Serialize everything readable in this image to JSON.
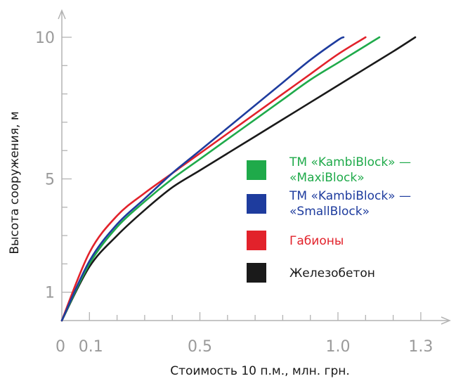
{
  "chart_data": {
    "type": "line",
    "xlabel": "Стоимость 10 п.м., млн. грн.",
    "ylabel": "Высота сооружения, м",
    "xlim": [
      0,
      1.35
    ],
    "ylim": [
      0,
      10.5
    ],
    "x_ticks": [
      0,
      0.1,
      0.5,
      1.0,
      1.3
    ],
    "x_tick_labels": [
      "0",
      "0.1",
      "0.5",
      "1.0",
      "1.3"
    ],
    "y_ticks": [
      1,
      5,
      10
    ],
    "y_tick_labels": [
      "1",
      "5",
      "10"
    ],
    "grid": false,
    "legend_position": "right",
    "series": [
      {
        "name": "ТМ «KambiBlock» — «MaxiBlock»",
        "color": "#1faa4a",
        "x": [
          0,
          0.1,
          0.2,
          0.3,
          0.4,
          0.5,
          0.6,
          0.7,
          0.8,
          0.9,
          1.0,
          1.1,
          1.15
        ],
        "y": [
          0,
          2.0,
          3.3,
          4.2,
          5.0,
          5.7,
          6.4,
          7.1,
          7.8,
          8.5,
          9.1,
          9.7,
          10.0
        ]
      },
      {
        "name": "ТМ «KambiBlock» — «SmallBlock»",
        "color": "#1e3c9e",
        "x": [
          0,
          0.1,
          0.2,
          0.3,
          0.4,
          0.5,
          0.6,
          0.7,
          0.8,
          0.9,
          1.0,
          1.02
        ],
        "y": [
          0,
          2.1,
          3.4,
          4.3,
          5.2,
          6.0,
          6.8,
          7.6,
          8.4,
          9.2,
          9.9,
          10.0
        ]
      },
      {
        "name": "Габионы",
        "color": "#e2222b",
        "x": [
          0,
          0.1,
          0.2,
          0.3,
          0.4,
          0.5,
          0.6,
          0.7,
          0.8,
          0.9,
          1.0,
          1.1
        ],
        "y": [
          0,
          2.4,
          3.7,
          4.5,
          5.2,
          5.9,
          6.6,
          7.3,
          8.0,
          8.7,
          9.4,
          10.0
        ]
      },
      {
        "name": "Железобетон",
        "color": "#1a1a1a",
        "x": [
          0,
          0.1,
          0.2,
          0.3,
          0.4,
          0.5,
          0.6,
          0.7,
          0.8,
          0.9,
          1.0,
          1.1,
          1.2,
          1.28
        ],
        "y": [
          0,
          1.9,
          3.0,
          3.9,
          4.7,
          5.3,
          5.9,
          6.5,
          7.1,
          7.7,
          8.3,
          8.9,
          9.5,
          10.0
        ]
      }
    ]
  }
}
